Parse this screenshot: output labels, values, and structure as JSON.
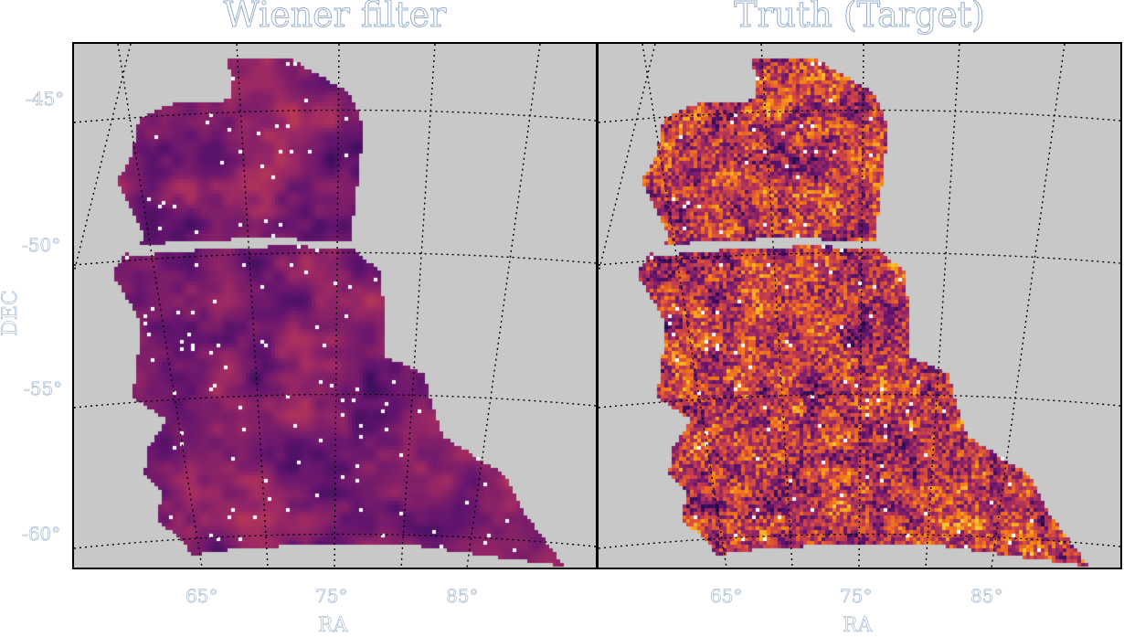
{
  "chart_data": [
    {
      "type": "heatmap",
      "title": "Wiener filter",
      "xlabel": "RA",
      "ylabel": "DEC",
      "x_ticks": [
        "65°",
        "75°",
        "85°"
      ],
      "y_ticks": [
        "-45°",
        "-50°",
        "-55°",
        "-60°"
      ],
      "colormap": "inferno",
      "grid": true
    },
    {
      "type": "heatmap",
      "title": "Truth (Target)",
      "xlabel": "RA",
      "x_ticks": [
        "65°",
        "75°",
        "85°"
      ],
      "colormap": "inferno",
      "grid": true
    }
  ],
  "colors": {
    "mask": "#c8c8c8",
    "grid": "#000000",
    "text_outline": "#9ab0cc"
  }
}
